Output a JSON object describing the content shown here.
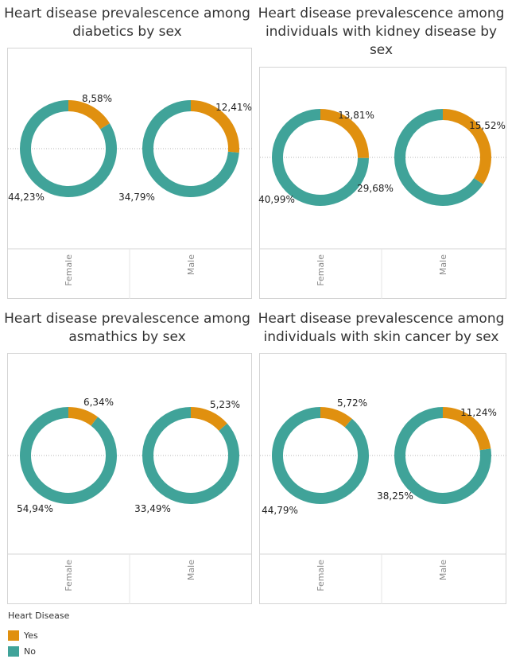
{
  "colors": {
    "yes": "#e0900f",
    "no": "#40a399"
  },
  "legend": {
    "title": "Heart Disease",
    "items": [
      {
        "label": "Yes",
        "color": "#e0900f"
      },
      {
        "label": "No",
        "color": "#40a399"
      }
    ]
  },
  "chart_data": [
    {
      "type": "pie",
      "title": "Heart disease prevalescence among diabetics by sex",
      "categories": [
        "Female",
        "Male"
      ],
      "series": [
        {
          "name": "Yes",
          "values": [
            8.58,
            12.41
          ],
          "labels": [
            "8,58%",
            "12,41%"
          ]
        },
        {
          "name": "No",
          "values": [
            44.23,
            34.79
          ],
          "labels": [
            "44,23%",
            "34,79%"
          ]
        }
      ]
    },
    {
      "type": "pie",
      "title": "Heart disease prevalescence among individuals with kidney disease by sex",
      "categories": [
        "Female",
        "Male"
      ],
      "series": [
        {
          "name": "Yes",
          "values": [
            13.81,
            15.52
          ],
          "labels": [
            "13,81%",
            "15,52%"
          ]
        },
        {
          "name": "No",
          "values": [
            40.99,
            29.68
          ],
          "labels": [
            "40,99%",
            "29,68%"
          ]
        }
      ]
    },
    {
      "type": "pie",
      "title": "Heart disease prevalescence among asmathics by sex",
      "categories": [
        "Female",
        "Male"
      ],
      "series": [
        {
          "name": "Yes",
          "values": [
            6.34,
            5.23
          ],
          "labels": [
            "6,34%",
            "5,23%"
          ]
        },
        {
          "name": "No",
          "values": [
            54.94,
            33.49
          ],
          "labels": [
            "54,94%",
            "33,49%"
          ]
        }
      ]
    },
    {
      "type": "pie",
      "title": "Heart disease prevalescence among individuals with skin cancer by sex",
      "categories": [
        "Female",
        "Male"
      ],
      "series": [
        {
          "name": "Yes",
          "values": [
            5.72,
            11.24
          ],
          "labels": [
            "5,72%",
            "11,24%"
          ]
        },
        {
          "name": "No",
          "values": [
            44.79,
            38.25
          ],
          "labels": [
            "44,79%",
            "38,25%"
          ]
        }
      ]
    }
  ]
}
